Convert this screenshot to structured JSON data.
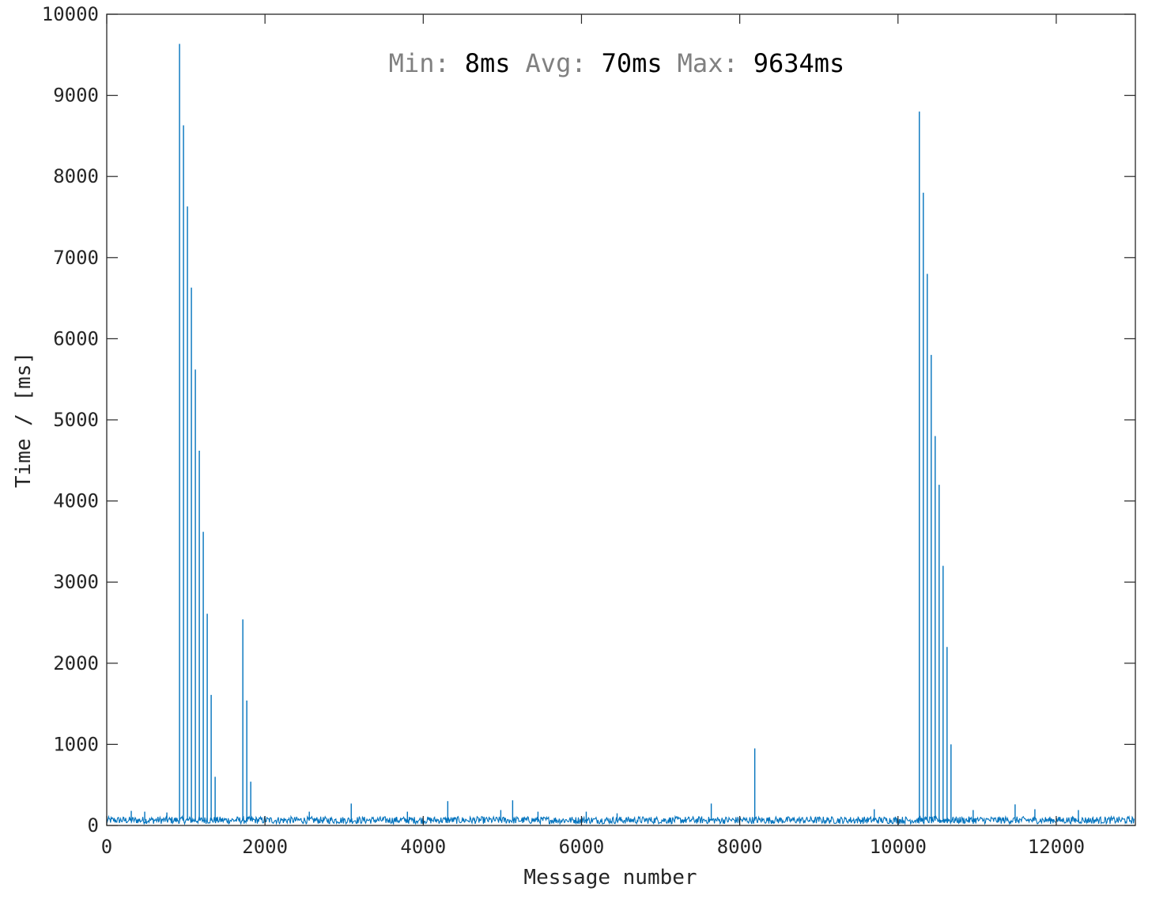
{
  "chart_data": {
    "type": "line",
    "title": "",
    "xlabel": "Message number",
    "ylabel": "Time / [ms]",
    "xlim": [
      0,
      13000
    ],
    "ylim": [
      0,
      10000
    ],
    "xticks": [
      0,
      2000,
      4000,
      6000,
      8000,
      10000,
      12000
    ],
    "yticks": [
      0,
      1000,
      2000,
      3000,
      4000,
      5000,
      6000,
      7000,
      8000,
      9000,
      10000
    ],
    "xtick_labels": [
      "0",
      "2000",
      "4000",
      "6000",
      "8000",
      "10000",
      "12000"
    ],
    "ytick_labels": [
      "0",
      "1000",
      "2000",
      "3000",
      "4000",
      "5000",
      "6000",
      "7000",
      "8000",
      "9000",
      "10000"
    ],
    "grid": false,
    "line_color": "#0072BD",
    "baseline": {
      "range": [
        0,
        12990
      ],
      "typical": 60,
      "noise": [
        20,
        110
      ]
    },
    "series": [
      {
        "x": [
          310,
          480,
          760,
          920,
          970,
          1020,
          1070,
          1120,
          1170,
          1220,
          1270,
          1320,
          1370,
          1720,
          1770,
          1820,
          2560,
          3090,
          3800,
          4310,
          4980,
          5130,
          5450,
          6060,
          6450,
          7640,
          8190,
          9700,
          10270,
          10320,
          10370,
          10420,
          10470,
          10520,
          10570,
          10620,
          10670,
          10950,
          11480,
          11730,
          12280
        ],
        "y": [
          180,
          170,
          160,
          9634,
          8630,
          7630,
          6630,
          5620,
          4620,
          3620,
          2610,
          1610,
          600,
          2540,
          1540,
          540,
          170,
          270,
          170,
          300,
          190,
          310,
          170,
          170,
          150,
          270,
          950,
          200,
          8800,
          7800,
          6800,
          5800,
          4800,
          4200,
          3200,
          2200,
          1000,
          190,
          260,
          200,
          190
        ]
      }
    ]
  },
  "stats": {
    "min_label": "Min:",
    "min_value": "8ms",
    "avg_label": "Avg:",
    "avg_value": "70ms",
    "max_label": "Max:",
    "max_value": "9634ms"
  }
}
